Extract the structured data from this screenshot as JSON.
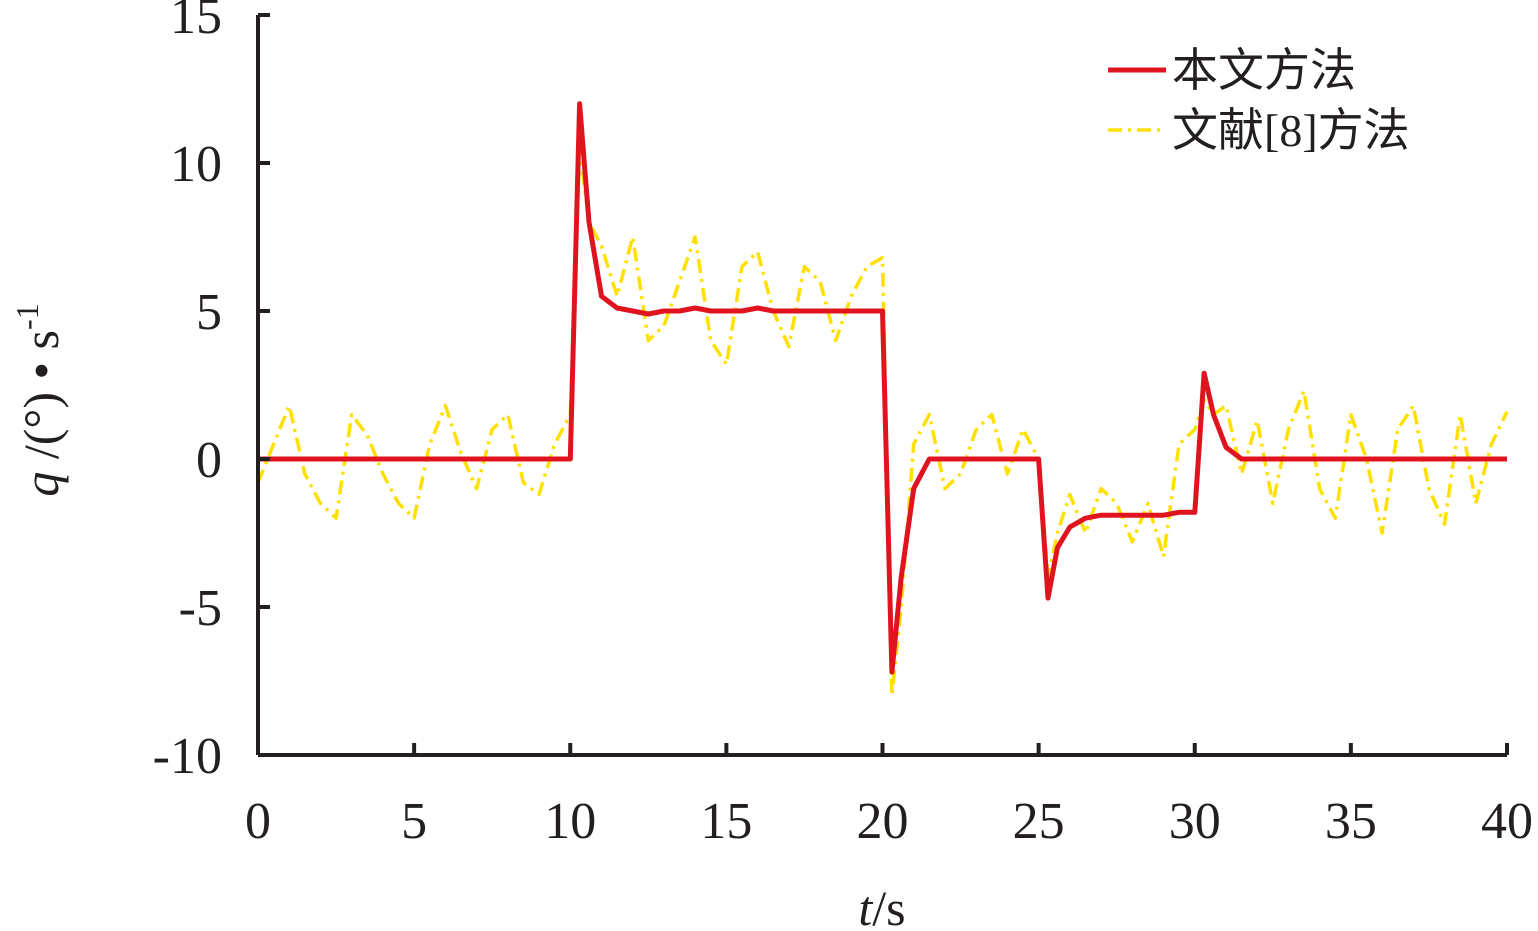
{
  "chart_data": {
    "type": "line",
    "xlabel": [
      "t",
      "/s"
    ],
    "ylabel": [
      "q",
      " /(°) • s",
      "-1"
    ],
    "xlim": [
      0,
      40
    ],
    "ylim": [
      -10,
      15
    ],
    "xticks": [
      0,
      5,
      10,
      15,
      20,
      25,
      30,
      35,
      40
    ],
    "yticks": [
      -10,
      -5,
      0,
      5,
      10,
      15
    ],
    "legend": "upper right",
    "x": [
      0,
      0.5,
      1,
      1.5,
      2,
      2.5,
      3,
      3.5,
      4,
      4.5,
      5,
      5.5,
      6,
      6.5,
      7,
      7.5,
      8,
      8.5,
      9,
      9.5,
      10,
      10.3,
      10.6,
      11,
      11.5,
      12,
      12.5,
      13,
      13.5,
      14,
      14.5,
      15,
      15.5,
      16,
      16.5,
      17,
      17.5,
      18,
      18.5,
      19,
      19.5,
      20,
      20.3,
      20.6,
      21,
      21.5,
      22,
      22.5,
      23,
      23.5,
      24,
      24.5,
      25,
      25.3,
      25.6,
      26,
      26.5,
      27,
      27.5,
      28,
      28.5,
      29,
      29.5,
      30,
      30.3,
      30.6,
      31,
      31.5,
      32,
      32.5,
      33,
      33.5,
      34,
      34.5,
      35,
      35.5,
      36,
      36.5,
      37,
      37.5,
      38,
      38.5,
      39,
      39.5,
      40
    ],
    "series": [
      {
        "name": "文献[8]方法",
        "color": "#ffe000",
        "dash": "dashdot",
        "values": [
          -0.8,
          0.5,
          1.8,
          -0.5,
          -1.5,
          -2,
          1.5,
          0.8,
          -0.5,
          -1.5,
          -2,
          0.5,
          1.8,
          0.2,
          -1,
          1,
          1.5,
          -0.8,
          -1.2,
          0.5,
          1.5,
          10.5,
          8,
          7.2,
          5.5,
          7.5,
          4,
          4.5,
          6,
          7.5,
          4,
          3.2,
          6.5,
          7,
          5,
          3.8,
          6.5,
          6,
          4,
          5.5,
          6.5,
          6.8,
          -8,
          -5,
          0.5,
          1.5,
          -1,
          -0.5,
          1,
          1.5,
          -0.5,
          1,
          0,
          -4,
          -2.5,
          -1.2,
          -2.5,
          -1,
          -1.5,
          -2.8,
          -1.5,
          -3.3,
          0.5,
          1,
          2,
          1.5,
          1.8,
          -0.5,
          1.3,
          -1.5,
          1,
          2.3,
          -1,
          -2,
          1.5,
          0,
          -2.5,
          1,
          1.8,
          -1,
          -2.2,
          1.5,
          -1.5,
          0.5,
          1.6
        ]
      },
      {
        "name": "本文方法",
        "color": "#e0141e",
        "dash": "solid",
        "values": [
          0,
          0,
          0,
          0,
          0,
          0,
          0,
          0,
          0,
          0,
          0,
          0,
          0,
          0,
          0,
          0,
          0,
          0,
          0,
          0,
          0,
          12,
          8,
          5.5,
          5.1,
          5,
          4.9,
          5,
          5,
          5.1,
          5,
          5,
          5,
          5.1,
          5,
          5,
          5,
          5,
          5,
          5,
          5,
          5,
          -7.2,
          -4,
          -1,
          0,
          0,
          0,
          0,
          0,
          0,
          0,
          0,
          -4.7,
          -3,
          -2.3,
          -2,
          -1.9,
          -1.9,
          -1.9,
          -1.9,
          -1.9,
          -1.8,
          -1.8,
          2.9,
          1.5,
          0.4,
          0,
          0,
          0,
          0,
          0,
          0,
          0,
          0,
          0,
          0,
          0,
          0,
          0,
          0,
          0,
          0,
          0,
          0
        ]
      }
    ]
  }
}
